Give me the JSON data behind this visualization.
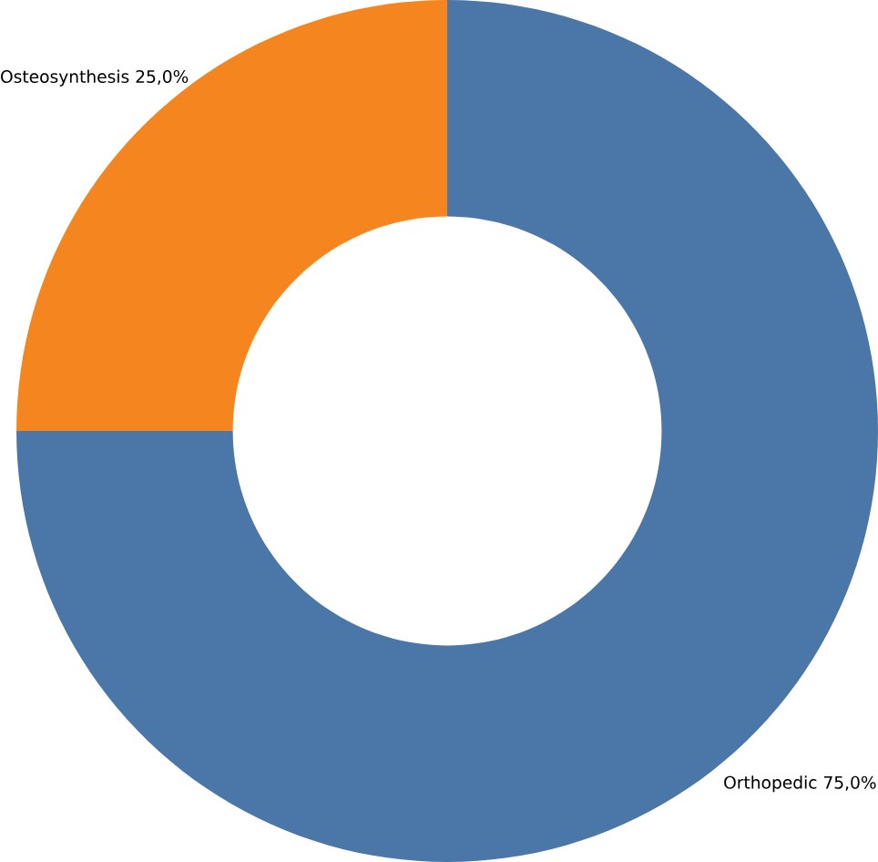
{
  "chart_data": {
    "type": "donut",
    "categories": [
      "Orthopedic",
      "Osteosynthesis"
    ],
    "values": [
      75,
      25
    ],
    "value_labels": [
      "75,0%",
      "25,0%"
    ],
    "colors": [
      "#4a76a8",
      "#f5861f"
    ]
  }
}
